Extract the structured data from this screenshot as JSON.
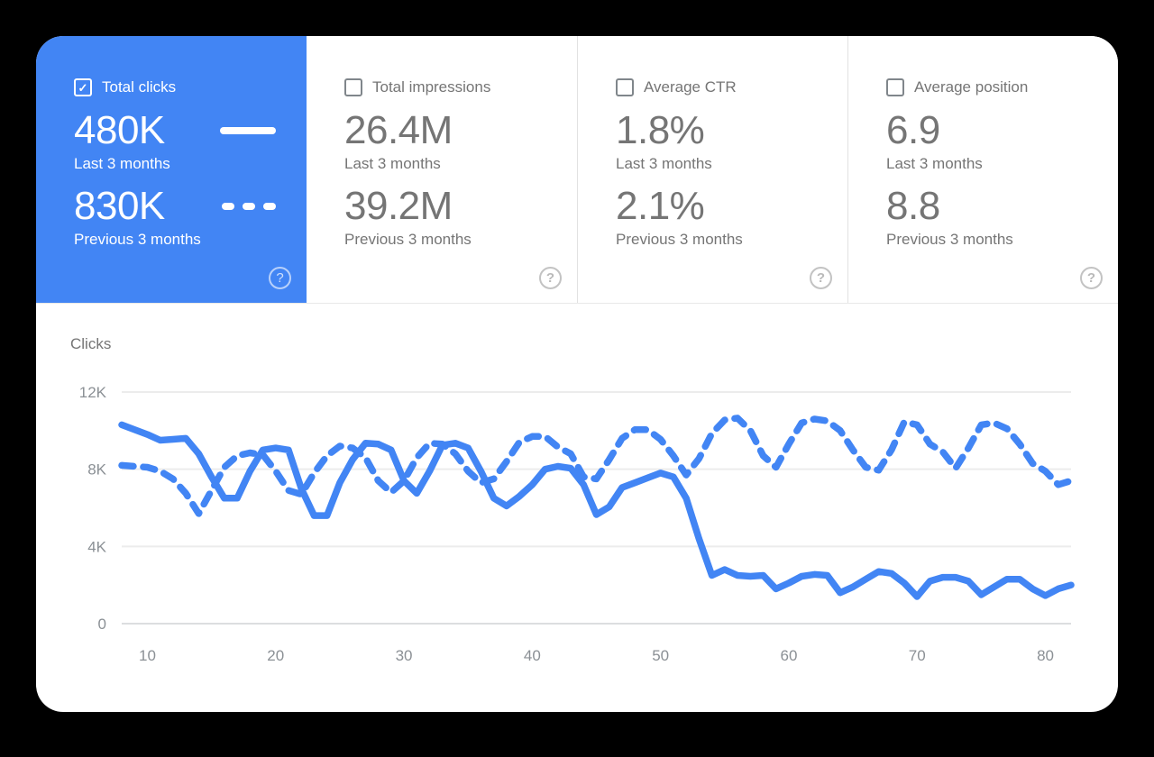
{
  "icons": {
    "check_glyph": "✓",
    "help_glyph": "?"
  },
  "colors": {
    "selected_card_bg": "#4285f4",
    "line": "#4285f4",
    "grid": "#ececec",
    "axis": "#dcdee0",
    "tick_label": "#8b9095",
    "text_gray": "#757575"
  },
  "cards": [
    {
      "label": "Total clicks",
      "checked": true,
      "selected": true,
      "value_last": "480K",
      "caption_last": "Last 3 months",
      "value_prev": "830K",
      "caption_prev": "Previous 3 months"
    },
    {
      "label": "Total impressions",
      "checked": false,
      "selected": false,
      "value_last": "26.4M",
      "caption_last": "Last 3 months",
      "value_prev": "39.2M",
      "caption_prev": "Previous 3 months"
    },
    {
      "label": "Average CTR",
      "checked": false,
      "selected": false,
      "value_last": "1.8%",
      "caption_last": "Last 3 months",
      "value_prev": "2.1%",
      "caption_prev": "Previous 3 months"
    },
    {
      "label": "Average position",
      "checked": false,
      "selected": false,
      "value_last": "6.9",
      "caption_last": "Last 3 months",
      "value_prev": "8.8",
      "caption_prev": "Previous 3 months"
    }
  ],
  "chart": {
    "heading": "Clicks"
  },
  "chart_data": {
    "type": "line",
    "title": "Clicks",
    "ylabel": "Clicks",
    "xlabel": "",
    "grid": true,
    "legend_position": "none",
    "ylim": [
      0,
      12
    ],
    "yticks": [
      "0",
      "4K",
      "8K",
      "12K"
    ],
    "ytick_values": [
      0,
      4,
      8,
      12
    ],
    "xticks": [
      10,
      20,
      30,
      40,
      50,
      60,
      70,
      80
    ],
    "x": [
      8,
      9,
      10,
      11,
      12,
      13,
      14,
      15,
      16,
      17,
      18,
      19,
      20,
      21,
      22,
      23,
      24,
      25,
      26,
      27,
      28,
      29,
      30,
      31,
      32,
      33,
      34,
      35,
      36,
      37,
      38,
      39,
      40,
      41,
      42,
      43,
      44,
      45,
      46,
      47,
      48,
      49,
      50,
      51,
      52,
      53,
      54,
      55,
      56,
      57,
      58,
      59,
      60,
      61,
      62,
      63,
      64,
      65,
      66,
      67,
      68,
      69,
      70,
      71,
      72,
      73,
      74,
      75,
      76,
      77,
      78,
      79,
      80,
      81,
      82
    ],
    "unit": "K",
    "series": [
      {
        "name": "Last 3 months",
        "style": "solid",
        "values": [
          10.3,
          10.05,
          9.8,
          9.5,
          9.55,
          9.6,
          8.8,
          7.6,
          6.5,
          6.5,
          7.9,
          9.0,
          9.1,
          9.0,
          7.0,
          5.6,
          5.6,
          7.3,
          8.5,
          9.35,
          9.3,
          9.0,
          7.4,
          6.75,
          7.9,
          9.25,
          9.35,
          9.1,
          7.9,
          6.5,
          6.1,
          6.6,
          7.2,
          8.0,
          8.15,
          8.05,
          7.2,
          5.65,
          6.05,
          7.05,
          7.3,
          7.55,
          7.8,
          7.6,
          6.5,
          4.4,
          2.5,
          2.8,
          2.5,
          2.45,
          2.5,
          1.8,
          2.1,
          2.45,
          2.55,
          2.5,
          1.6,
          1.9,
          2.3,
          2.7,
          2.6,
          2.1,
          1.4,
          2.2,
          2.4,
          2.4,
          2.2,
          1.5,
          1.9,
          2.3,
          2.3,
          1.8,
          1.45,
          1.8,
          2.0
        ]
      },
      {
        "name": "Previous 3 months",
        "style": "dashed",
        "values": [
          8.2,
          8.15,
          8.1,
          7.9,
          7.5,
          6.75,
          5.7,
          6.9,
          8.1,
          8.7,
          8.85,
          8.75,
          7.9,
          6.9,
          6.7,
          7.8,
          8.7,
          9.2,
          9.1,
          8.6,
          7.4,
          6.8,
          7.4,
          8.6,
          9.35,
          9.3,
          8.8,
          7.9,
          7.3,
          7.5,
          8.4,
          9.4,
          9.7,
          9.7,
          9.15,
          8.8,
          7.6,
          7.5,
          8.5,
          9.6,
          10.05,
          10.05,
          9.55,
          8.7,
          7.7,
          8.55,
          9.85,
          10.55,
          10.65,
          10.0,
          8.7,
          8.1,
          9.3,
          10.4,
          10.6,
          10.5,
          10.0,
          9.0,
          8.1,
          7.95,
          9.0,
          10.45,
          10.3,
          9.3,
          8.9,
          8.05,
          9.1,
          10.3,
          10.4,
          10.1,
          9.3,
          8.3,
          7.9,
          7.2,
          7.4
        ]
      }
    ]
  }
}
